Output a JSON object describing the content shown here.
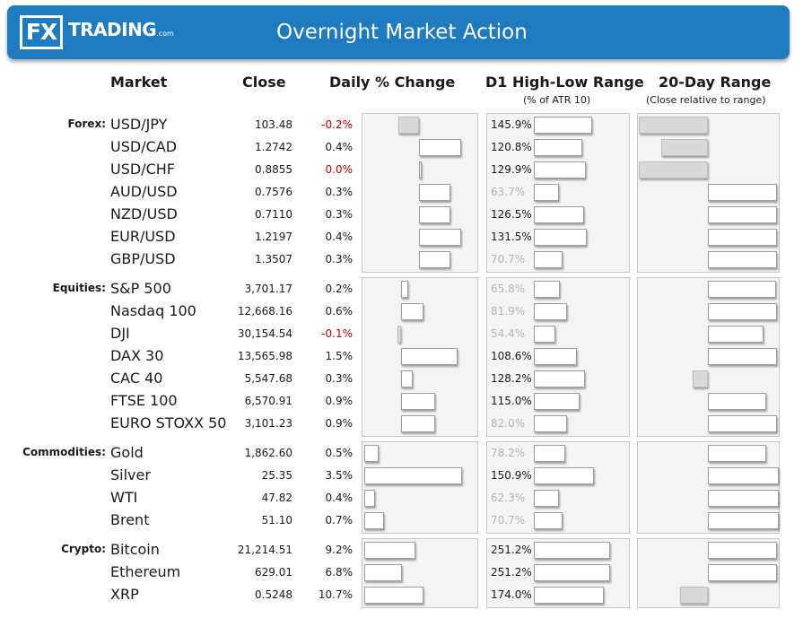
{
  "header": {
    "logo_fx": "FX",
    "logo_trading": "TRADING",
    "logo_com": ".com",
    "title": "Overnight Market Action"
  },
  "columns": {
    "market": "Market",
    "close": "Close",
    "daily_change": "Daily % Change",
    "d1_range": "D1 High-Low Range",
    "d1_range_sub": "(% of ATR 10)",
    "day20_range": "20-Day Range",
    "day20_range_sub": "(Close relative to range)"
  },
  "colors": {
    "header_bg": "#1e7bbf",
    "negative_text": "#c00000",
    "positive_bar": "#ffffff",
    "negative_bar": "#d9d9d9",
    "panel_bg": "#f4f4f4"
  },
  "chart_data": {
    "type": "table",
    "groups": [
      {
        "category": "Forex:",
        "rows": [
          {
            "market": "USD/JPY",
            "close": "103.48",
            "change": "-0.2%",
            "change_value": -0.2,
            "atr_label": "145.9%",
            "atr_value": 145.9,
            "atr_highlight": true,
            "range_pos": -0.45
          },
          {
            "market": "USD/CAD",
            "close": "1.2742",
            "change": "0.4%",
            "change_value": 0.4,
            "atr_label": "120.8%",
            "atr_value": 120.8,
            "atr_highlight": true,
            "range_pos": -0.3
          },
          {
            "market": "USD/CHF",
            "close": "0.8855",
            "change": "0.0%",
            "change_value": 0.0,
            "atr_label": "129.9%",
            "atr_value": 129.9,
            "atr_highlight": true,
            "range_pos": -0.45
          },
          {
            "market": "AUD/USD",
            "close": "0.7576",
            "change": "0.3%",
            "change_value": 0.3,
            "atr_label": "63.7%",
            "atr_value": 63.7,
            "atr_highlight": false,
            "range_pos": 0.45
          },
          {
            "market": "NZD/USD",
            "close": "0.7110",
            "change": "0.3%",
            "change_value": 0.3,
            "atr_label": "126.5%",
            "atr_value": 126.5,
            "atr_highlight": true,
            "range_pos": 0.45
          },
          {
            "market": "EUR/USD",
            "close": "1.2197",
            "change": "0.4%",
            "change_value": 0.4,
            "atr_label": "131.5%",
            "atr_value": 131.5,
            "atr_highlight": true,
            "range_pos": 0.45
          },
          {
            "market": "GBP/USD",
            "close": "1.3507",
            "change": "0.3%",
            "change_value": 0.3,
            "atr_label": "70.7%",
            "atr_value": 70.7,
            "atr_highlight": false,
            "range_pos": 0.45
          }
        ]
      },
      {
        "category": "Equities:",
        "rows": [
          {
            "market": "S&P 500",
            "close": "3,701.17",
            "change": "0.2%",
            "change_value": 0.2,
            "atr_label": "65.8%",
            "atr_value": 65.8,
            "atr_highlight": false,
            "range_pos": 0.44
          },
          {
            "market": "Nasdaq 100",
            "close": "12,668.16",
            "change": "0.6%",
            "change_value": 0.6,
            "atr_label": "81.9%",
            "atr_value": 81.9,
            "atr_highlight": false,
            "range_pos": 0.45
          },
          {
            "market": "DJI",
            "close": "30,154.54",
            "change": "-0.1%",
            "change_value": -0.1,
            "atr_label": "54.4%",
            "atr_value": 54.4,
            "atr_highlight": false,
            "range_pos": 0.36
          },
          {
            "market": "DAX 30",
            "close": "13,565.98",
            "change": "1.5%",
            "change_value": 1.5,
            "atr_label": "108.6%",
            "atr_value": 108.6,
            "atr_highlight": true,
            "range_pos": 0.45
          },
          {
            "market": "CAC 40",
            "close": "5,547.68",
            "change": "0.3%",
            "change_value": 0.3,
            "atr_label": "128.2%",
            "atr_value": 128.2,
            "atr_highlight": true,
            "range_pos": -0.1
          },
          {
            "market": "FTSE 100",
            "close": "6,570.91",
            "change": "0.9%",
            "change_value": 0.9,
            "atr_label": "115.0%",
            "atr_value": 115.0,
            "atr_highlight": true,
            "range_pos": 0.38
          },
          {
            "market": "EURO STOXX 50",
            "close": "3,101.23",
            "change": "0.9%",
            "change_value": 0.9,
            "atr_label": "82.0%",
            "atr_value": 82.0,
            "atr_highlight": false,
            "range_pos": 0.45
          }
        ]
      },
      {
        "category": "Commodities:",
        "rows": [
          {
            "market": "Gold",
            "close": "1,862.60",
            "change": "0.5%",
            "change_value": 0.5,
            "atr_label": "78.2%",
            "atr_value": 78.2,
            "atr_highlight": false,
            "range_pos": 0.38
          },
          {
            "market": "Silver",
            "close": "25.35",
            "change": "3.5%",
            "change_value": 3.5,
            "atr_label": "150.9%",
            "atr_value": 150.9,
            "atr_highlight": true,
            "range_pos": 0.46
          },
          {
            "market": "WTI",
            "close": "47.82",
            "change": "0.4%",
            "change_value": 0.4,
            "atr_label": "62.3%",
            "atr_value": 62.3,
            "atr_highlight": false,
            "range_pos": 0.46
          },
          {
            "market": "Brent",
            "close": "51.10",
            "change": "0.7%",
            "change_value": 0.7,
            "atr_label": "70.7%",
            "atr_value": 70.7,
            "atr_highlight": false,
            "range_pos": 0.46
          }
        ]
      },
      {
        "category": "Crypto:",
        "rows": [
          {
            "market": "Bitcoin",
            "close": "21,214.51",
            "change": "9.2%",
            "change_value": 9.2,
            "atr_label": "251.2%",
            "atr_value": 251.2,
            "atr_highlight": true,
            "range_pos": 0.45
          },
          {
            "market": "Ethereum",
            "close": "629.01",
            "change": "6.8%",
            "change_value": 6.8,
            "atr_label": "251.2%",
            "atr_value": 251.2,
            "atr_highlight": true,
            "range_pos": 0.45
          },
          {
            "market": "XRP",
            "close": "0.5248",
            "change": "10.7%",
            "change_value": 10.7,
            "atr_label": "174.0%",
            "atr_value": 174.0,
            "atr_highlight": true,
            "range_pos": -0.18
          }
        ]
      }
    ]
  }
}
